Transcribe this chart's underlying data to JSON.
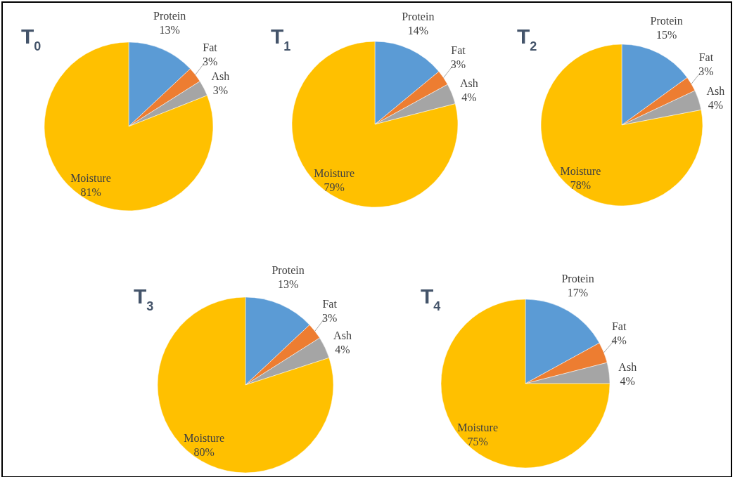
{
  "chart_data": [
    {
      "type": "pie",
      "title": "T$_{0}$",
      "categories": [
        "Protein",
        "Fat",
        "Ash",
        "Moisture"
      ],
      "values": [
        13,
        3,
        3,
        81
      ],
      "colors": [
        "#5b9bd5",
        "#ed7d31",
        "#a5a5a5",
        "#ffc000"
      ],
      "value_labels": [
        "13%",
        "3%",
        "3%",
        "81%"
      ]
    },
    {
      "type": "pie",
      "title": "T$_{1}$",
      "categories": [
        "Protein",
        "Fat",
        "Ash",
        "Moisture"
      ],
      "values": [
        14,
        3,
        4,
        79
      ],
      "colors": [
        "#5b9bd5",
        "#ed7d31",
        "#a5a5a5",
        "#ffc000"
      ],
      "value_labels": [
        "14%",
        "3%",
        "4%",
        "79%"
      ]
    },
    {
      "type": "pie",
      "title": "T$_{2}$",
      "categories": [
        "Protein",
        "Fat",
        "Ash",
        "Moisture"
      ],
      "values": [
        15,
        3,
        4,
        78
      ],
      "colors": [
        "#5b9bd5",
        "#ed7d31",
        "#a5a5a5",
        "#ffc000"
      ],
      "value_labels": [
        "15%",
        "3%",
        "4%",
        "78%"
      ]
    },
    {
      "type": "pie",
      "title": "T$_{3}$",
      "categories": [
        "Protein",
        "Fat",
        "Ash",
        "Moisture"
      ],
      "values": [
        13,
        3,
        4,
        80
      ],
      "colors": [
        "#5b9bd5",
        "#ed7d31",
        "#a5a5a5",
        "#ffc000"
      ],
      "value_labels": [
        "13%",
        "3%",
        "4%",
        "80%"
      ]
    },
    {
      "type": "pie",
      "title": "T$_{4}$",
      "categories": [
        "Protein",
        "Fat",
        "Ash",
        "Moisture"
      ],
      "values": [
        17,
        4,
        4,
        75
      ],
      "colors": [
        "#5b9bd5",
        "#ed7d31",
        "#a5a5a5",
        "#ffc000"
      ],
      "value_labels": [
        "17%",
        "4%",
        "4%",
        "75%"
      ]
    }
  ]
}
